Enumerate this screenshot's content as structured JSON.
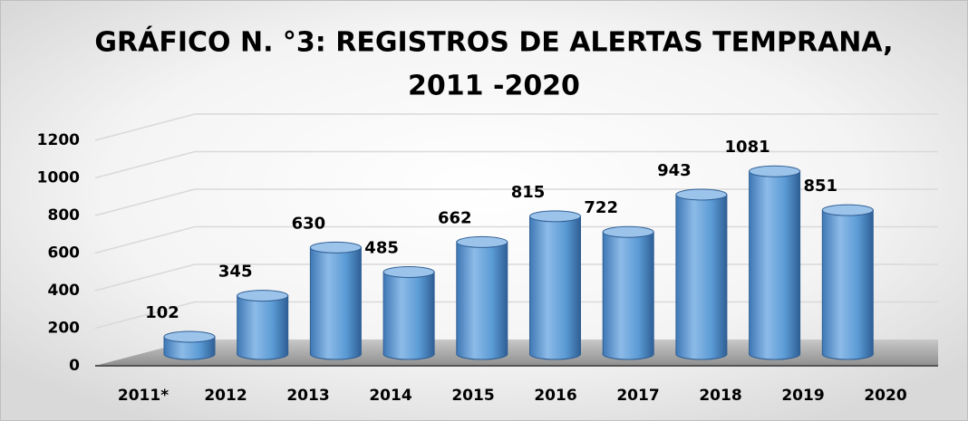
{
  "chart_data": {
    "type": "bar",
    "title": [
      "GRÁFICO N. °3: REGISTROS DE ALERTAS TEMPRANA,",
      "2011 -2020"
    ],
    "categories": [
      "2011*",
      "2012",
      "2013",
      "2014",
      "2015",
      "2016",
      "2017",
      "2018",
      "2019",
      "2020"
    ],
    "values": [
      102,
      345,
      630,
      485,
      662,
      815,
      722,
      943,
      1081,
      851
    ],
    "color": "#5b9bd5",
    "ylim": [
      0,
      1200
    ],
    "yticks": [
      0,
      200,
      400,
      600,
      800,
      1000,
      1200
    ],
    "grid": true
  }
}
